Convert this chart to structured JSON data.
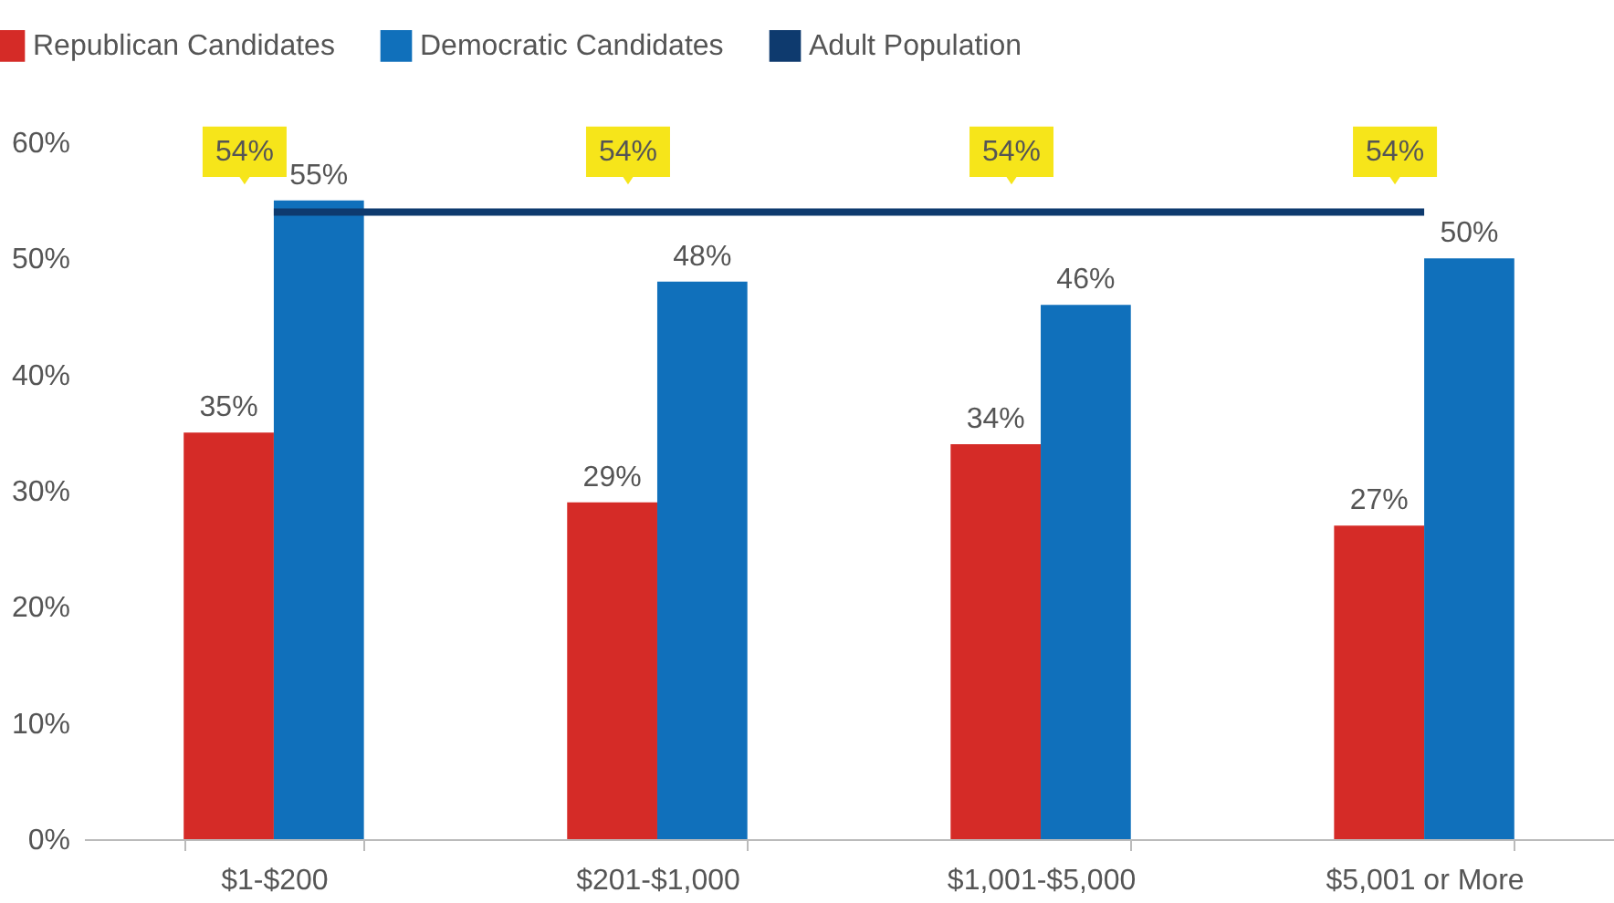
{
  "chart_data": {
    "type": "bar",
    "categories": [
      "$1-$200",
      "$201-$1,000",
      "$1,001-$5,000",
      "$5,001 or More"
    ],
    "series": [
      {
        "name": "Republican Candidates",
        "color": "#d52b27",
        "values": [
          35,
          29,
          34,
          27
        ],
        "value_labels": [
          "35%",
          "29%",
          "34%",
          "27%"
        ]
      },
      {
        "name": "Democratic Candidates",
        "color": "#1070bb",
        "values": [
          55,
          48,
          46,
          50
        ],
        "value_labels": [
          "55%",
          "48%",
          "46%",
          "50%"
        ]
      },
      {
        "name": "Adult Population",
        "type": "line",
        "color": "#0e3a6e",
        "values": [
          54,
          54,
          54,
          54
        ],
        "value_labels": [
          "54%",
          "54%",
          "54%",
          "54%"
        ]
      }
    ],
    "ylim": [
      0,
      60
    ],
    "yticks": [
      {
        "value": 0,
        "label": "0%"
      },
      {
        "value": 10,
        "label": "10%"
      },
      {
        "value": 20,
        "label": "20%"
      },
      {
        "value": 30,
        "label": "30%"
      },
      {
        "value": 40,
        "label": "40%"
      },
      {
        "value": 50,
        "label": "50%"
      },
      {
        "value": 60,
        "label": "60%"
      }
    ],
    "grid": false,
    "legend": "top left"
  }
}
